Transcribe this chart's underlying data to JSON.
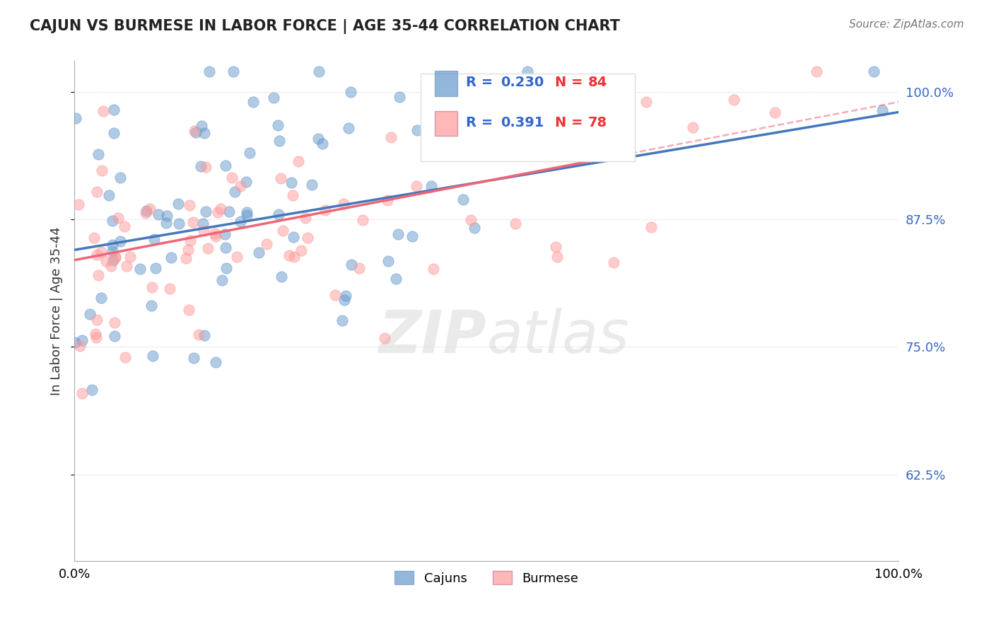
{
  "title": "CAJUN VS BURMESE IN LABOR FORCE | AGE 35-44 CORRELATION CHART",
  "source": "Source: ZipAtlas.com",
  "ylabel": "In Labor Force | Age 35-44",
  "cajun_R": 0.23,
  "cajun_N": 84,
  "burmese_R": 0.391,
  "burmese_N": 78,
  "cajun_color": "#6699CC",
  "burmese_color": "#FF9999",
  "cajun_line_color": "#4477BB",
  "burmese_line_color": "#EE6677",
  "xlim": [
    0.0,
    1.0
  ],
  "ylim": [
    0.54,
    1.03
  ],
  "yticks": [
    0.625,
    0.75,
    0.875,
    1.0
  ],
  "ytick_labels": [
    "62.5%",
    "75.0%",
    "87.5%",
    "100.0%"
  ],
  "xticks": [
    0.0,
    1.0
  ],
  "xtick_labels": [
    "0.0%",
    "100.0%"
  ],
  "watermark_zip": "ZIP",
  "watermark_atlas": "atlas",
  "legend_R_color": "#3366CC",
  "legend_N_color": "#EE3333",
  "background_color": "#FFFFFF",
  "grid_color": "#CCCCCC",
  "cajun_seed": 42,
  "burmese_seed": 123,
  "cajun_intercept": 0.845,
  "cajun_slope": 0.135,
  "burmese_intercept": 0.835,
  "burmese_slope": 0.155
}
